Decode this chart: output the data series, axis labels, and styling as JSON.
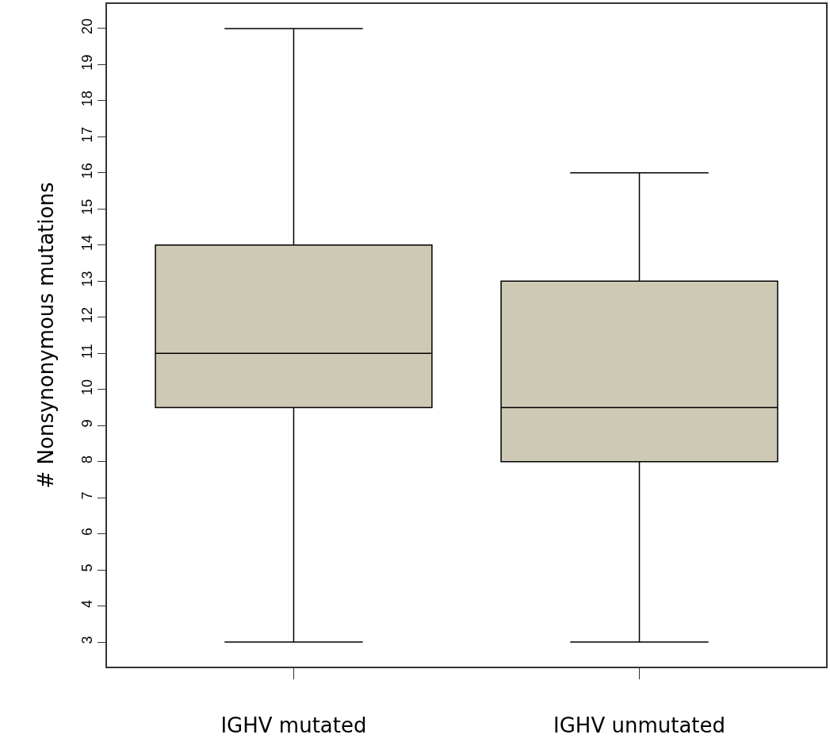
{
  "chart_data": {
    "type": "box",
    "ylabel": "# Nonsynonymous mutations",
    "categories": [
      "IGHV mutated",
      "IGHV unmutated"
    ],
    "boxes": [
      {
        "low": 3,
        "q1": 9.5,
        "median": 11,
        "q3": 14,
        "high": 20
      },
      {
        "low": 3,
        "q1": 8,
        "median": 9.5,
        "q3": 13,
        "high": 16
      }
    ],
    "color": "#cdc9b4",
    "ylim": [
      2.32,
      20.68
    ],
    "yticks": [
      3,
      4,
      5,
      6,
      7,
      8,
      9,
      10,
      11,
      12,
      13,
      14,
      15,
      16,
      17,
      18,
      19,
      20
    ],
    "grid": false,
    "legend": false
  }
}
